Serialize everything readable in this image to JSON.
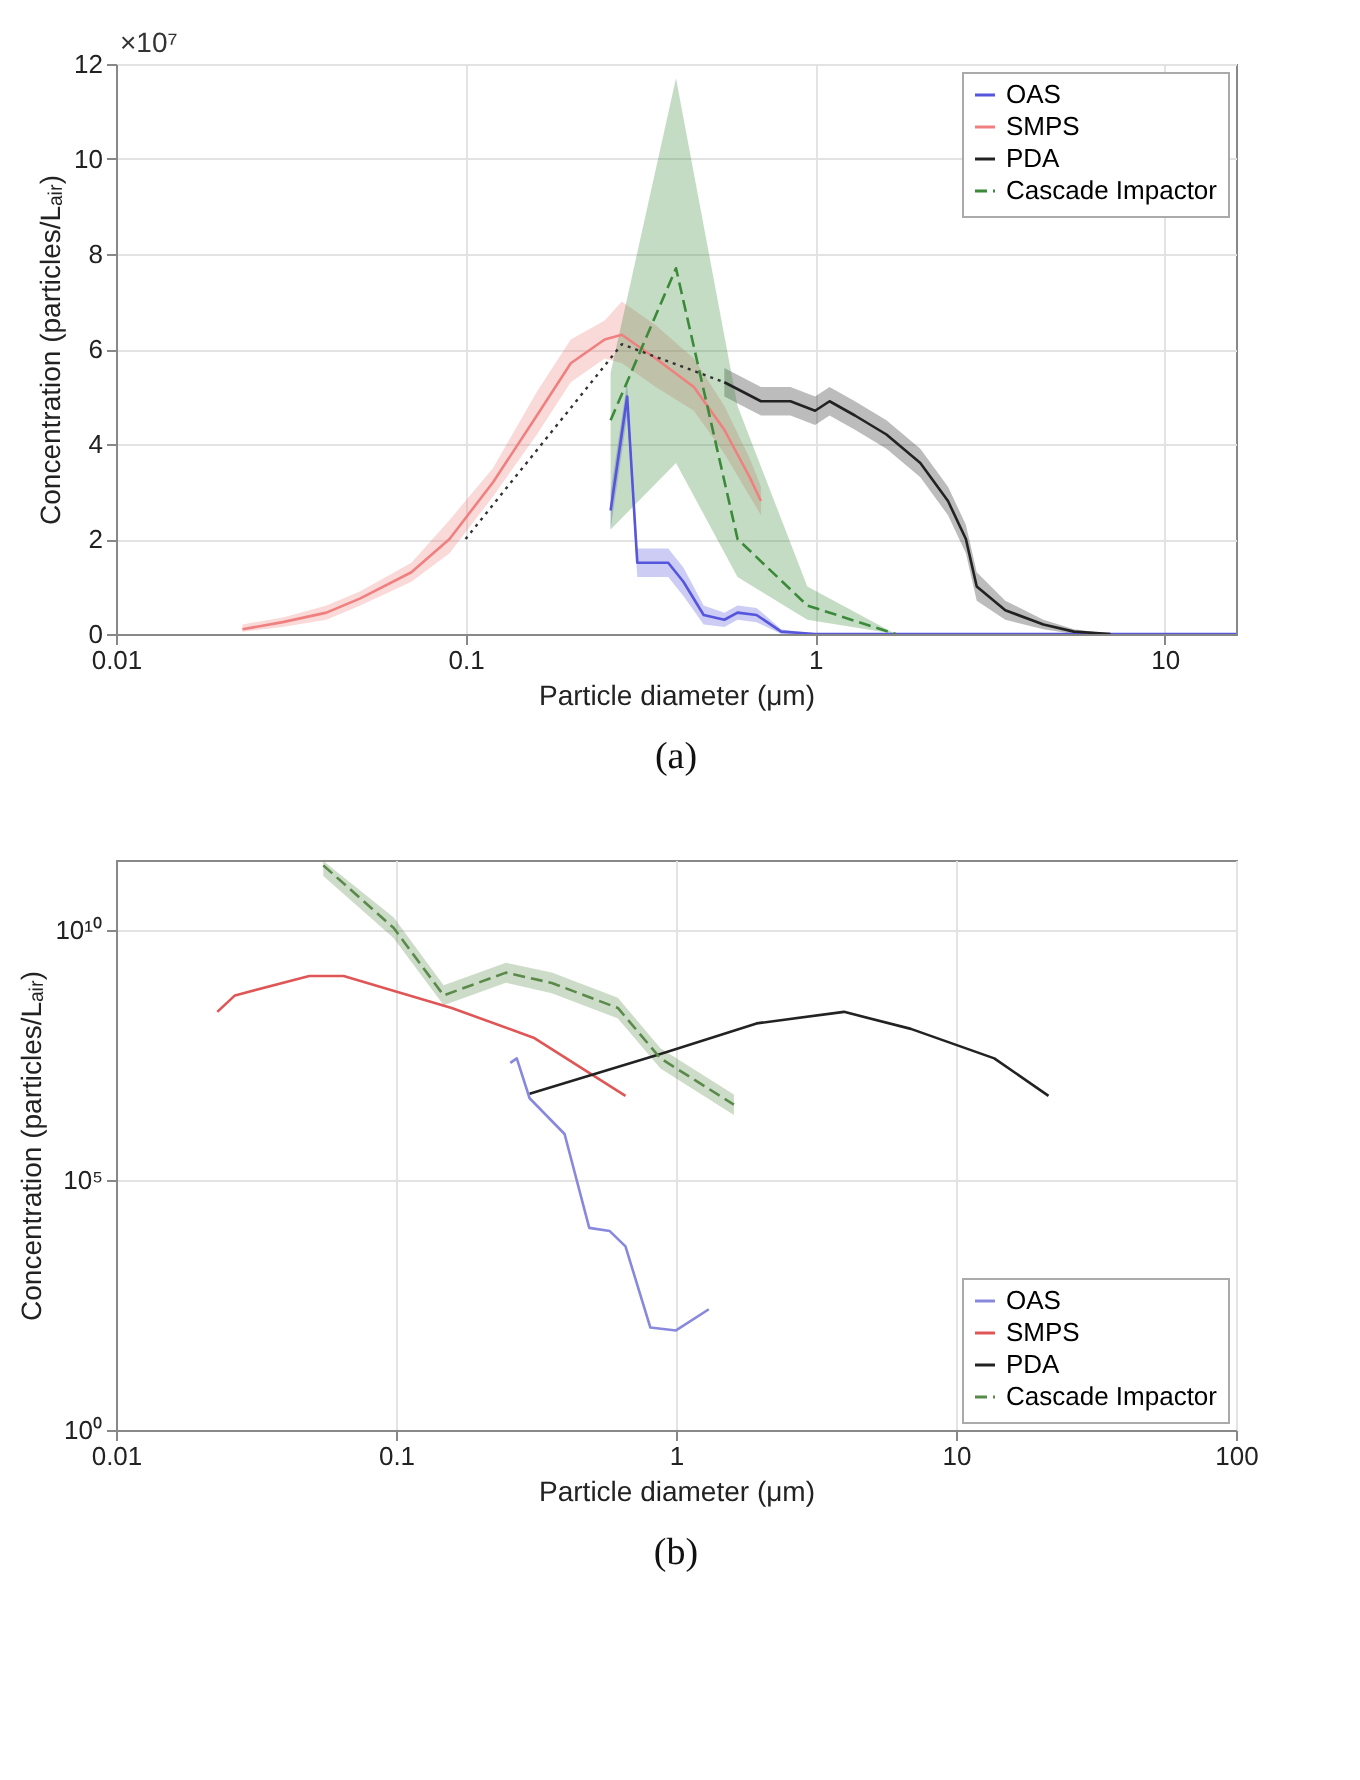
{
  "chart_data": [
    {
      "type": "line",
      "title": "(a)",
      "xlabel": "Particle diameter (μm)",
      "ylabel": "Concentration (particles/Lₐᵢᵣ)",
      "annotations": [
        "×10⁷"
      ],
      "log": "x",
      "grid": true,
      "legend": "top right",
      "xlim": [
        0.01,
        16
      ],
      "xticks": [
        0.01,
        0.1,
        1,
        10
      ],
      "ylim": [
        0,
        12
      ],
      "yticks": [
        0,
        2,
        4,
        6,
        8,
        10,
        12
      ],
      "series": [
        {
          "name": "OAS",
          "color": "#5555dd",
          "x": [
            0.26,
            0.29,
            0.31,
            0.38,
            0.42,
            0.48,
            0.55,
            0.6,
            0.68,
            0.8,
            1,
            16
          ],
          "values": [
            2.6,
            5.0,
            1.5,
            1.5,
            1.1,
            0.4,
            0.3,
            0.45,
            0.4,
            0.05,
            0,
            0
          ],
          "lower": [
            2.2,
            4.6,
            1.2,
            1.2,
            0.8,
            0.2,
            0.15,
            0.3,
            0.25,
            0,
            0,
            0
          ],
          "upper": [
            3.0,
            5.3,
            1.8,
            1.8,
            1.4,
            0.6,
            0.45,
            0.6,
            0.55,
            0.1,
            0,
            0
          ]
        },
        {
          "name": "SMPS",
          "color": "#f08080",
          "x": [
            0.023,
            0.03,
            0.04,
            0.05,
            0.07,
            0.09,
            0.12,
            0.16,
            0.2,
            0.25,
            0.28,
            0.35,
            0.45,
            0.55,
            0.65,
            0.7
          ],
          "values": [
            0.1,
            0.25,
            0.45,
            0.75,
            1.3,
            2.0,
            3.2,
            4.6,
            5.7,
            6.2,
            6.3,
            5.8,
            5.2,
            4.3,
            3.3,
            2.8
          ],
          "lower": [
            0.05,
            0.15,
            0.3,
            0.6,
            1.1,
            1.7,
            2.9,
            4.2,
            5.3,
            5.8,
            5.7,
            5.2,
            4.7,
            3.8,
            2.9,
            2.5
          ],
          "upper": [
            0.2,
            0.35,
            0.6,
            0.9,
            1.5,
            2.4,
            3.5,
            5.1,
            6.2,
            6.6,
            7.0,
            6.5,
            5.8,
            4.8,
            3.7,
            3.1
          ]
        },
        {
          "name": "PDA",
          "color": "#222222",
          "x": [
            0.55,
            0.7,
            0.85,
            1.0,
            1.1,
            1.3,
            1.6,
            2.0,
            2.4,
            2.7,
            2.9,
            3.5,
            4.5,
            5.5,
            7
          ],
          "values": [
            5.3,
            4.9,
            4.9,
            4.7,
            4.9,
            4.6,
            4.2,
            3.6,
            2.8,
            2.0,
            1.0,
            0.5,
            0.2,
            0.05,
            0
          ],
          "lower": [
            5.0,
            4.6,
            4.6,
            4.4,
            4.6,
            4.3,
            3.9,
            3.3,
            2.5,
            1.7,
            0.7,
            0.3,
            0.1,
            0,
            0
          ],
          "upper": [
            5.6,
            5.2,
            5.2,
            5.0,
            5.2,
            4.9,
            4.5,
            3.9,
            3.1,
            2.3,
            1.3,
            0.7,
            0.3,
            0.1,
            0
          ]
        },
        {
          "name": "Cascade Impactor",
          "color": "#3a8a3a",
          "line_style": "dashed",
          "x": [
            0.26,
            0.4,
            0.6,
            0.95,
            1.7
          ],
          "values": [
            4.5,
            7.7,
            2.0,
            0.6,
            0
          ],
          "lower": [
            2.2,
            3.6,
            1.2,
            0.3,
            0
          ],
          "upper": [
            5.5,
            11.7,
            4.8,
            1.0,
            0
          ]
        },
        {
          "color": "#333333",
          "line_style": "dotted",
          "x": [
            0.1,
            0.28,
            0.55
          ],
          "values": [
            2.0,
            6.1,
            5.3
          ]
        }
      ]
    },
    {
      "type": "line",
      "title": "(b)",
      "xlabel": "Particle diameter (μm)",
      "ylabel": "Concentration (particles/Lₐᵢᵣ)",
      "log": "xy",
      "grid": true,
      "legend": "bottom right",
      "xlim": [
        0.01,
        100
      ],
      "xticks": [
        0.01,
        0.1,
        1,
        10,
        100
      ],
      "ylim": [
        1,
        250000000000.0
      ],
      "yticks": [
        {
          "value": 1,
          "label": "10⁰"
        },
        {
          "value": 100000.0,
          "label": "10⁵"
        },
        {
          "value": 10000000000.0,
          "label": "10¹⁰"
        }
      ],
      "series": [
        {
          "name": "OAS",
          "color": "#8888dd",
          "x": [
            0.256,
            0.27,
            0.3,
            0.4,
            0.49,
            0.58,
            0.66,
            0.81,
            1.0,
            1.31
          ],
          "values": [
            22000000.0,
            27000000.0,
            4300000.0,
            830000.0,
            11000.0,
            9500.0,
            4700.0,
            112,
            98,
            260
          ]
        },
        {
          "name": "SMPS",
          "color": "#e05555",
          "x": [
            0.023,
            0.0266,
            0.049,
            0.065,
            0.158,
            0.31,
            0.66
          ],
          "values": [
            230000000.0,
            490000000.0,
            1200000000.0,
            1200000000.0,
            275000000.0,
            70000000.0,
            4800000.0
          ]
        },
        {
          "name": "PDA",
          "color": "#222222",
          "x": [
            0.3,
            0.88,
            1.94,
            3.98,
            6.9,
            13.7,
            21.4
          ],
          "values": [
            5300000.0,
            33000000.0,
            135000000.0,
            230000000.0,
            105000000.0,
            27000000.0,
            4800000.0
          ]
        },
        {
          "name": "Cascade Impactor",
          "color": "#5a8a4a",
          "line_style": "dashed",
          "x": [
            0.055,
            0.098,
            0.148,
            0.247,
            0.36,
            0.62,
            0.88,
            1.61
          ],
          "values": [
            195000000000.0,
            11000000000.0,
            490000000.0,
            1400000000.0,
            870000000.0,
            275000000.0,
            27000000.0,
            3200000.0
          ],
          "lower": [
            120000000000.0,
            6900000000.0,
            310000000.0,
            880000000.0,
            540000000.0,
            170000000.0,
            17000000.0,
            2000000.0
          ],
          "upper": [
            240000000000.0,
            18000000000.0,
            780000000.0,
            2200000000.0,
            1400000000.0,
            440000000.0,
            43000000.0,
            5100000.0
          ]
        }
      ]
    }
  ]
}
